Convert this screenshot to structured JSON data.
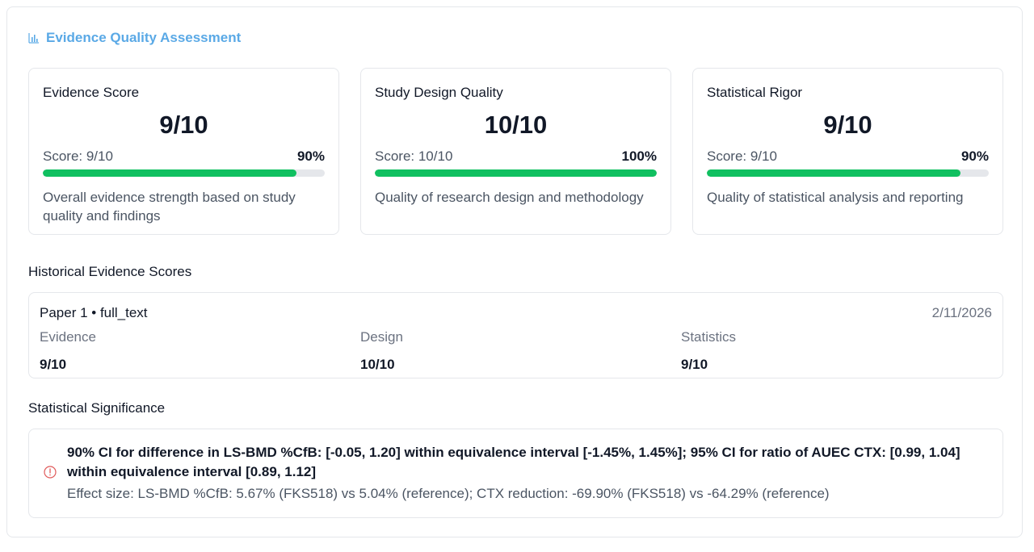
{
  "header": {
    "title": "Evidence Quality Assessment",
    "icon": "bar-chart-icon"
  },
  "cards": [
    {
      "title": "Evidence Score",
      "value": "9/10",
      "score_label": "Score: 9/10",
      "percent": "90%",
      "fill": 0.9,
      "description": "Overall evidence strength based on study quality and findings"
    },
    {
      "title": "Study Design Quality",
      "value": "10/10",
      "score_label": "Score: 10/10",
      "percent": "100%",
      "fill": 1.0,
      "description": "Quality of research design and methodology"
    },
    {
      "title": "Statistical Rigor",
      "value": "9/10",
      "score_label": "Score: 9/10",
      "percent": "90%",
      "fill": 0.9,
      "description": "Quality of statistical analysis and reporting"
    }
  ],
  "colors": {
    "accent": "#5aa9e6",
    "progress": "#10c060",
    "track": "#e5e7eb",
    "alert": "#e05a5a"
  },
  "history": {
    "title": "Historical Evidence Scores",
    "entry": {
      "paper": "Paper 1 • full_text",
      "date": "2/11/2026",
      "evidence_label": "Evidence",
      "evidence_value": "9/10",
      "design_label": "Design",
      "design_value": "10/10",
      "statistics_label": "Statistics",
      "statistics_value": "9/10"
    }
  },
  "significance": {
    "title": "Statistical Significance",
    "icon": "alert-circle-icon",
    "main": "90% CI for difference in LS-BMD %CfB: [-0.05, 1.20] within equivalence interval [-1.45%, 1.45%]; 95% CI for ratio of AUEC CTX: [0.99, 1.04] within equivalence interval [0.89, 1.12]",
    "effect": "Effect size: LS-BMD %CfB: 5.67% (FKS518) vs 5.04% (reference); CTX reduction: -69.90% (FKS518) vs -64.29% (reference)"
  }
}
